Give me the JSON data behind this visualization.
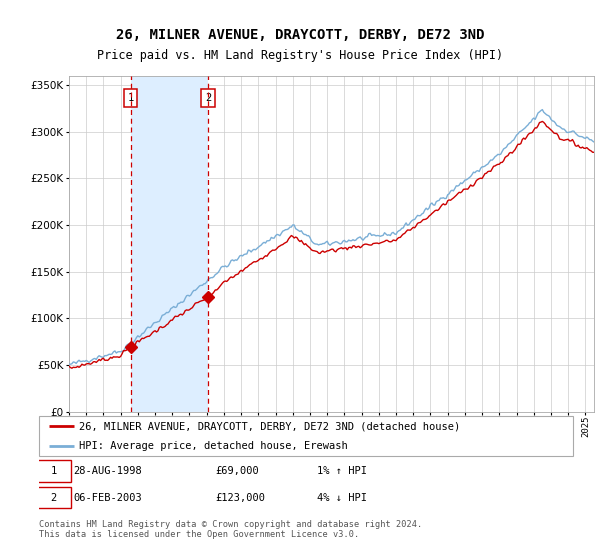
{
  "title": "26, MILNER AVENUE, DRAYCOTT, DERBY, DE72 3ND",
  "subtitle": "Price paid vs. HM Land Registry's House Price Index (HPI)",
  "sale1_price": 69000,
  "sale1_hpi_text": "1% ↑ HPI",
  "sale1_display": "28-AUG-1998",
  "sale2_price": 123000,
  "sale2_hpi_text": "4% ↓ HPI",
  "sale2_display": "06-FEB-2003",
  "ylim": [
    0,
    360000
  ],
  "yticks": [
    0,
    50000,
    100000,
    150000,
    200000,
    250000,
    300000,
    350000
  ],
  "ytick_labels": [
    "£0",
    "£50K",
    "£100K",
    "£150K",
    "£200K",
    "£250K",
    "£300K",
    "£350K"
  ],
  "xstart": 1995.0,
  "xend": 2025.5,
  "line_color_red": "#cc0000",
  "line_color_blue": "#7aaed6",
  "shaded_region_color": "#ddeeff",
  "grid_color": "#cccccc",
  "bg_color": "#ffffff",
  "legend_label_red": "26, MILNER AVENUE, DRAYCOTT, DERBY, DE72 3ND (detached house)",
  "legend_label_blue": "HPI: Average price, detached house, Erewash",
  "footer": "Contains HM Land Registry data © Crown copyright and database right 2024.\nThis data is licensed under the Open Government Licence v3.0."
}
